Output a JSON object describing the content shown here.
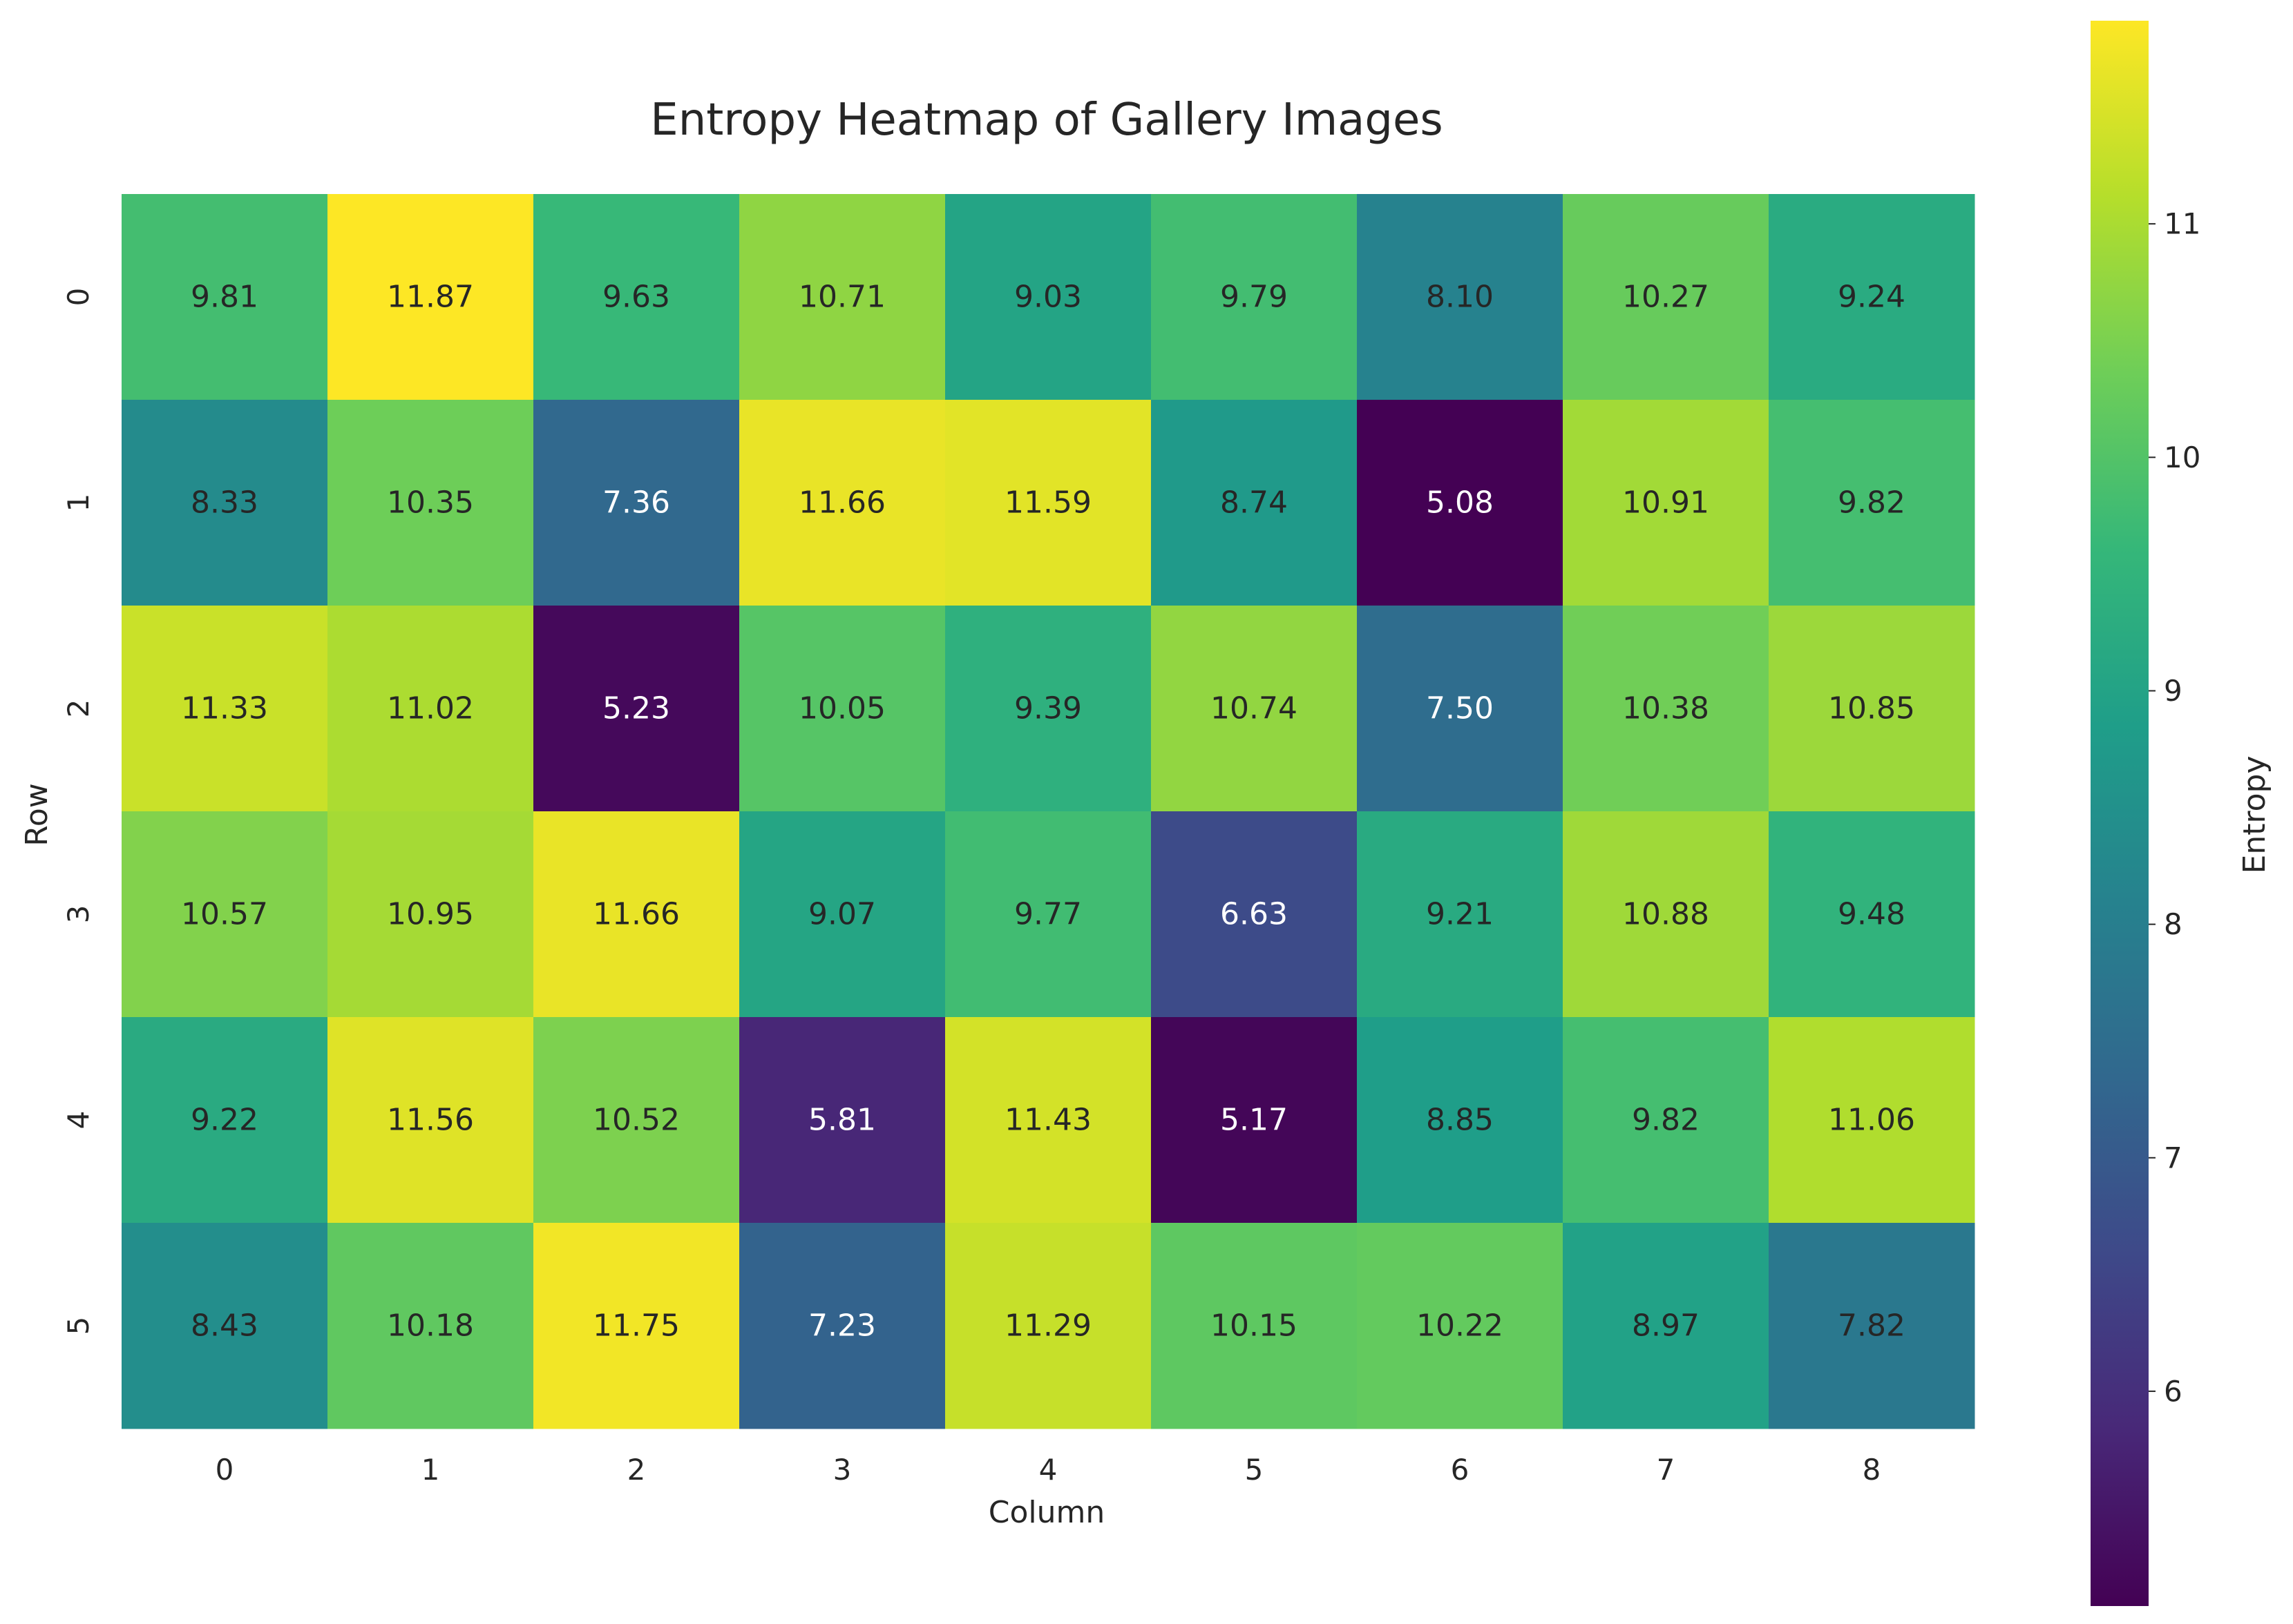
{
  "chart_data": {
    "type": "heatmap",
    "title": "Entropy Heatmap of Gallery Images",
    "xlabel": "Column",
    "ylabel": "Row",
    "x_categories": [
      "0",
      "1",
      "2",
      "3",
      "4",
      "5",
      "6",
      "7",
      "8"
    ],
    "y_categories": [
      "0",
      "1",
      "2",
      "3",
      "4",
      "5"
    ],
    "values": [
      [
        9.81,
        11.87,
        9.63,
        10.71,
        9.03,
        9.79,
        8.1,
        10.27,
        9.24
      ],
      [
        8.33,
        10.35,
        7.36,
        11.66,
        11.59,
        8.74,
        5.08,
        10.91,
        9.82
      ],
      [
        11.33,
        11.02,
        5.23,
        10.05,
        9.39,
        10.74,
        7.5,
        10.38,
        10.85
      ],
      [
        10.57,
        10.95,
        11.66,
        9.07,
        9.77,
        6.63,
        9.21,
        10.88,
        9.48
      ],
      [
        9.22,
        11.56,
        10.52,
        5.81,
        11.43,
        5.17,
        8.85,
        9.82,
        11.06
      ],
      [
        8.43,
        10.18,
        11.75,
        7.23,
        11.29,
        10.15,
        10.22,
        8.97,
        7.82
      ]
    ],
    "value_format": "2 decimals",
    "colormap": "viridis",
    "colorbar": {
      "label": "Entropy",
      "range": [
        5.08,
        11.87
      ],
      "ticks": [
        "6",
        "7",
        "8",
        "9",
        "10",
        "11"
      ]
    },
    "grid": false,
    "legend": "colorbar-right"
  },
  "colors": {
    "text_dark": "#262626",
    "text_light": "#ffffff",
    "viridis_stops": [
      "#440154",
      "#482878",
      "#3e4989",
      "#31688e",
      "#26828e",
      "#1f9e89",
      "#35b779",
      "#6ece58",
      "#b5de2b",
      "#fde725"
    ]
  }
}
